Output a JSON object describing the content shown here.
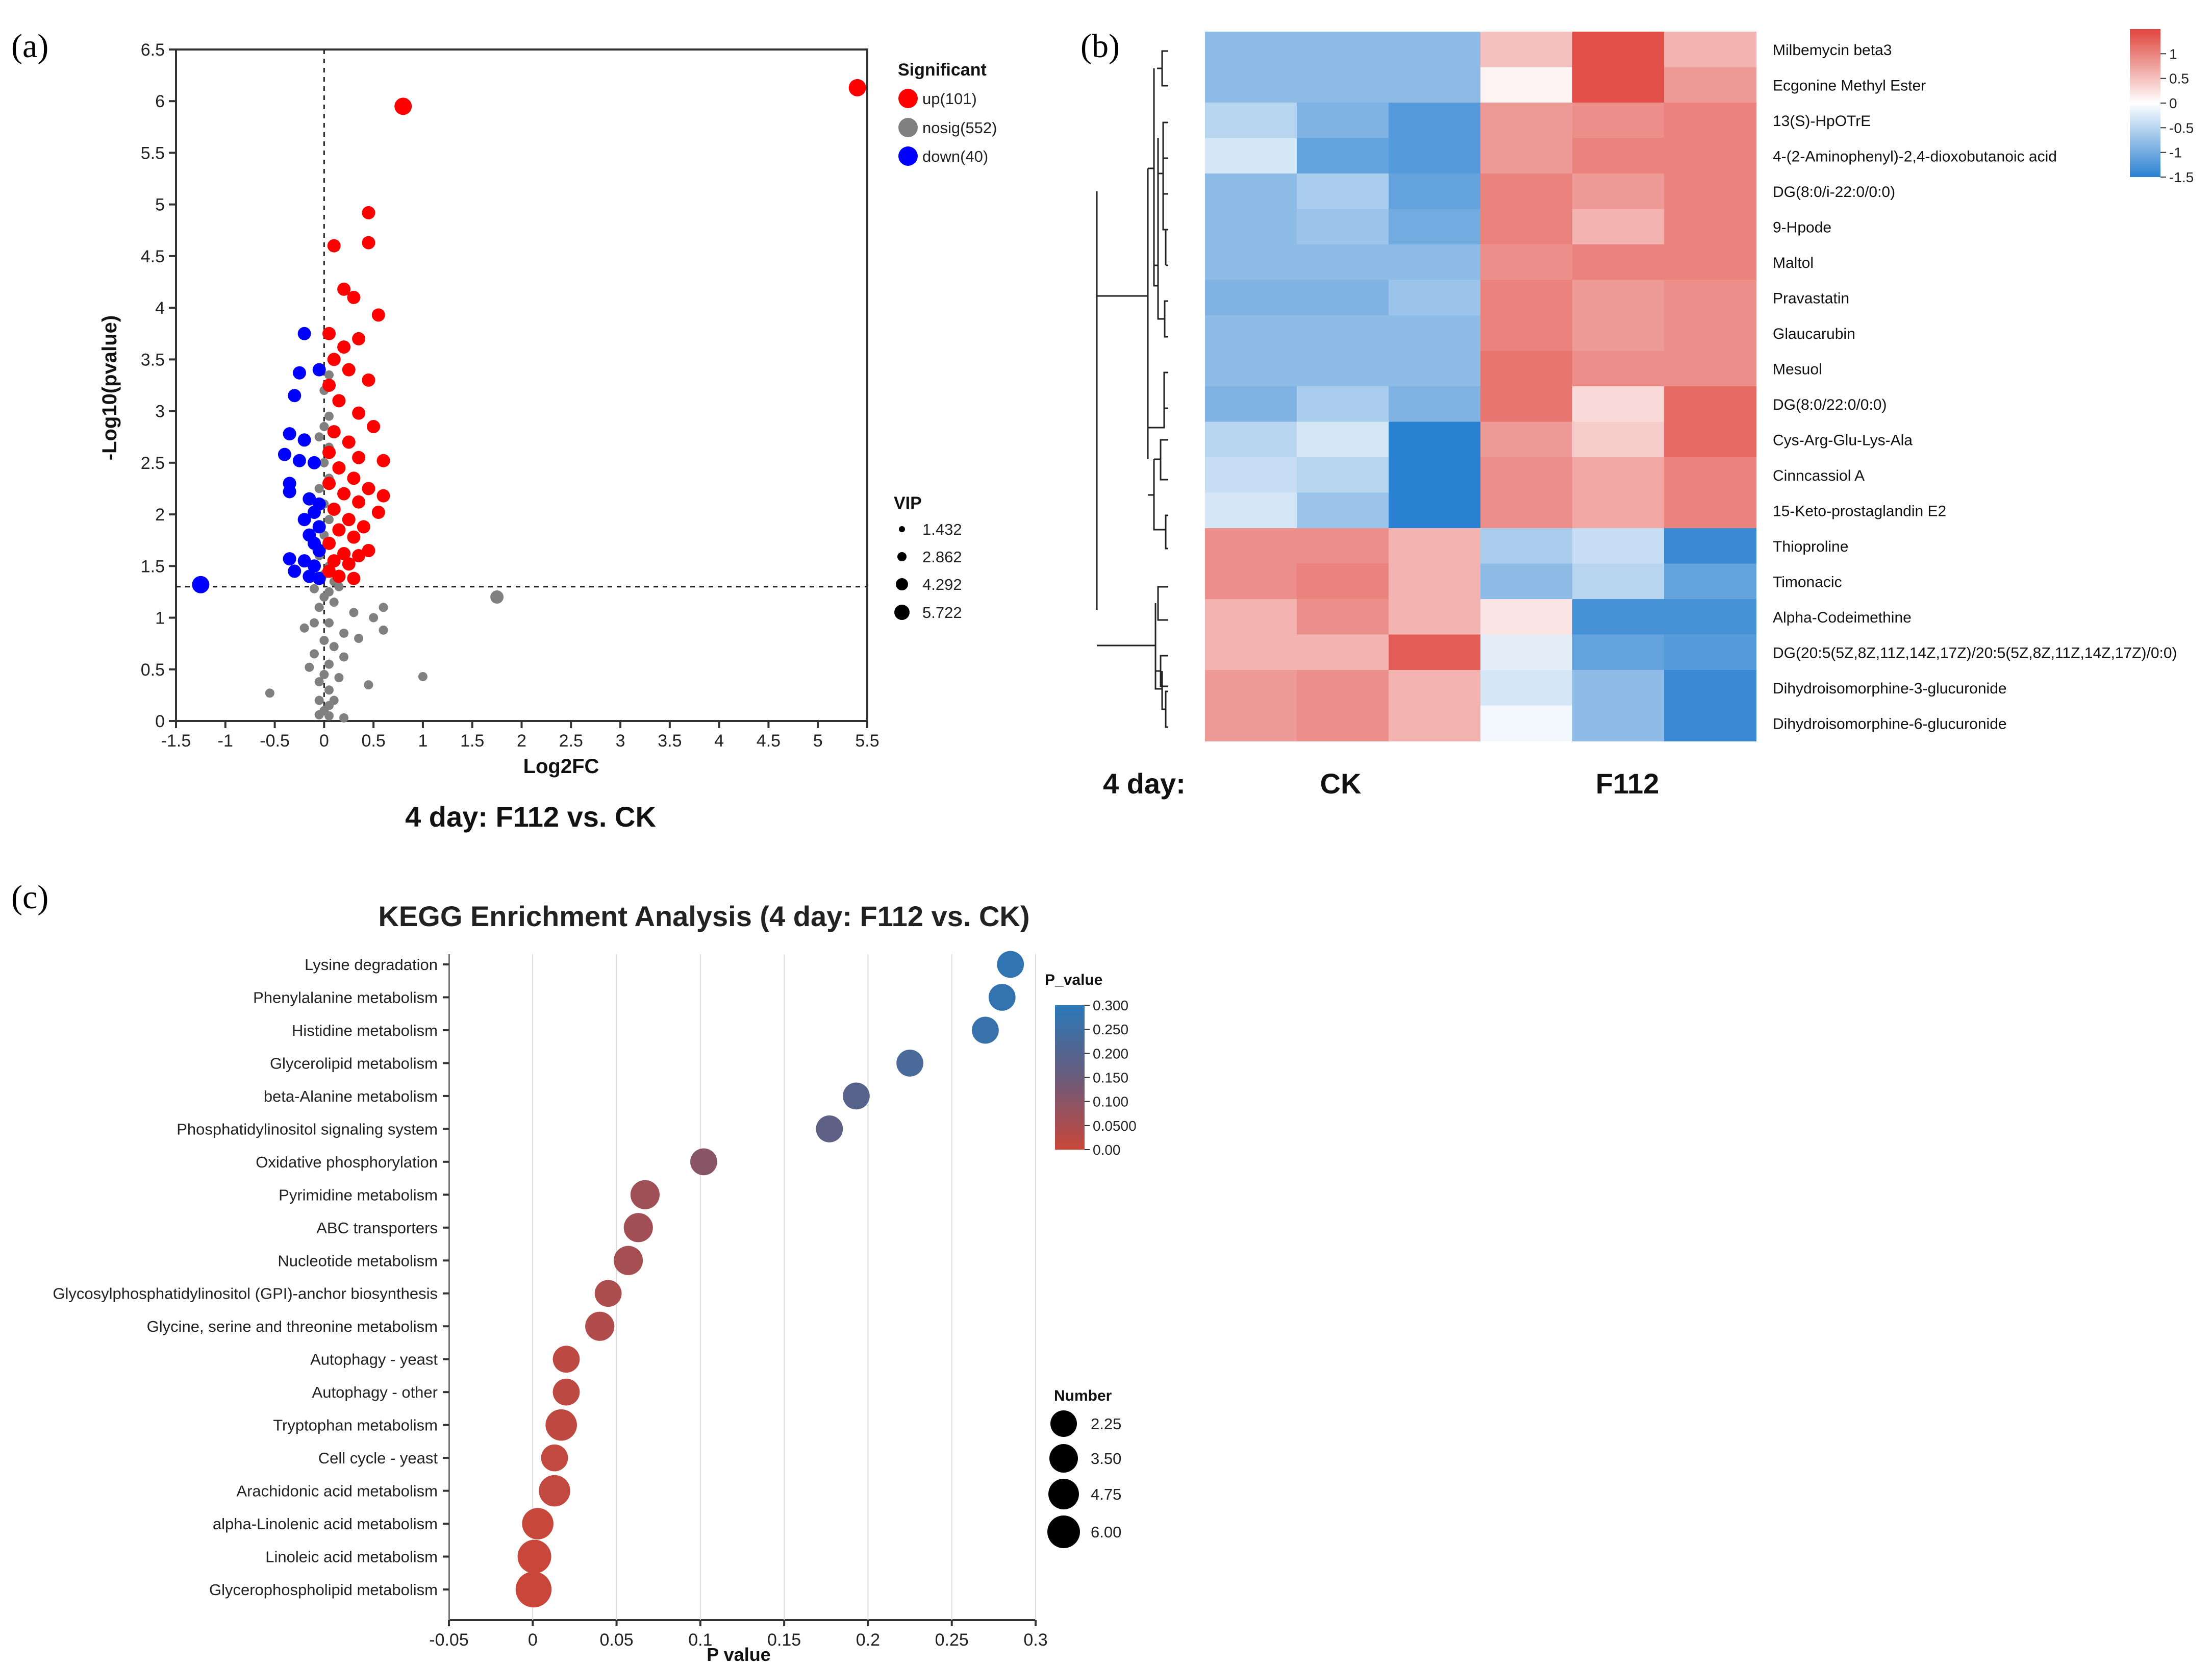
{
  "panels": {
    "a": "(a)",
    "b": "(b)",
    "c": "(c)"
  },
  "colors": {
    "up": "#ff0000",
    "nosig": "#808080",
    "down": "#0000ff",
    "heat_high": "#e0443c",
    "heat_mid": "#ffffff",
    "heat_low": "#2b81d1"
  },
  "chart_data": [
    {
      "type": "scatter",
      "title": "4 day: F112 vs. CK",
      "xlabel": "Log2FC",
      "ylabel": "-Log10(pvalue)",
      "xlim": [
        -1.5,
        5.5
      ],
      "ylim": [
        0,
        6.5
      ],
      "xticks": [
        "-1.5",
        "-1",
        "-0.5",
        "0",
        "0.5",
        "1",
        "1.5",
        "2",
        "2.5",
        "3",
        "3.5",
        "4",
        "4.5",
        "5",
        "5.5"
      ],
      "yticks": [
        "0",
        "0.5",
        "1",
        "1.5",
        "2",
        "2.5",
        "3",
        "3.5",
        "4",
        "4.5",
        "5",
        "5.5",
        "6",
        "6.5"
      ],
      "threshold_y": 1.3,
      "threshold_x": 0,
      "legend_title": "Significant",
      "legend": [
        {
          "key": "up",
          "label": "up(101)"
        },
        {
          "key": "nosig",
          "label": "nosig(552)"
        },
        {
          "key": "down",
          "label": "down(40)"
        }
      ],
      "size_legend_title": "VIP",
      "size_legend": [
        "1.432",
        "2.862",
        "4.292",
        "5.722"
      ],
      "points": {
        "up": [
          [
            5.4,
            6.13
          ],
          [
            0.8,
            5.95
          ],
          [
            0.45,
            4.92
          ],
          [
            0.45,
            4.63
          ],
          [
            0.1,
            4.6
          ],
          [
            0.2,
            4.18
          ],
          [
            0.3,
            4.1
          ],
          [
            0.55,
            3.93
          ],
          [
            0.05,
            3.75
          ],
          [
            0.35,
            3.7
          ],
          [
            0.2,
            3.62
          ],
          [
            0.1,
            3.5
          ],
          [
            0.25,
            3.4
          ],
          [
            0.45,
            3.3
          ],
          [
            0.05,
            3.25
          ],
          [
            0.15,
            3.1
          ],
          [
            0.35,
            2.98
          ],
          [
            0.5,
            2.85
          ],
          [
            0.1,
            2.8
          ],
          [
            0.25,
            2.7
          ],
          [
            0.05,
            2.6
          ],
          [
            0.35,
            2.55
          ],
          [
            0.6,
            2.52
          ],
          [
            0.15,
            2.45
          ],
          [
            0.3,
            2.35
          ],
          [
            0.05,
            2.3
          ],
          [
            0.45,
            2.25
          ],
          [
            0.2,
            2.2
          ],
          [
            0.6,
            2.18
          ],
          [
            0.35,
            2.12
          ],
          [
            0.1,
            2.05
          ],
          [
            0.55,
            2.02
          ],
          [
            0.25,
            1.95
          ],
          [
            0.4,
            1.88
          ],
          [
            0.15,
            1.85
          ],
          [
            0.3,
            1.78
          ],
          [
            0.05,
            1.72
          ],
          [
            0.45,
            1.65
          ],
          [
            0.2,
            1.62
          ],
          [
            0.35,
            1.6
          ],
          [
            0.1,
            1.55
          ],
          [
            0.25,
            1.52
          ],
          [
            0.05,
            1.45
          ],
          [
            0.15,
            1.4
          ],
          [
            0.3,
            1.38
          ]
        ],
        "down": [
          [
            -1.25,
            1.32
          ],
          [
            -0.2,
            3.75
          ],
          [
            -0.05,
            3.4
          ],
          [
            -0.25,
            3.37
          ],
          [
            -0.3,
            3.15
          ],
          [
            -0.35,
            2.78
          ],
          [
            -0.2,
            2.72
          ],
          [
            -0.4,
            2.58
          ],
          [
            -0.25,
            2.52
          ],
          [
            -0.1,
            2.5
          ],
          [
            -0.35,
            2.3
          ],
          [
            -0.35,
            2.22
          ],
          [
            -0.15,
            2.15
          ],
          [
            -0.05,
            2.1
          ],
          [
            -0.1,
            2.02
          ],
          [
            -0.2,
            1.95
          ],
          [
            -0.05,
            1.88
          ],
          [
            -0.15,
            1.8
          ],
          [
            -0.1,
            1.72
          ],
          [
            -0.05,
            1.65
          ],
          [
            -0.35,
            1.57
          ],
          [
            -0.2,
            1.55
          ],
          [
            -0.1,
            1.5
          ],
          [
            -0.3,
            1.45
          ],
          [
            -0.15,
            1.4
          ],
          [
            -0.05,
            1.38
          ]
        ],
        "nosig": [
          [
            1.75,
            1.2
          ],
          [
            0.05,
            3.35
          ],
          [
            0,
            3.2
          ],
          [
            0.05,
            2.95
          ],
          [
            0,
            2.85
          ],
          [
            -0.05,
            2.75
          ],
          [
            0.05,
            2.65
          ],
          [
            0,
            2.5
          ],
          [
            0.05,
            2.35
          ],
          [
            -0.05,
            2.25
          ],
          [
            0,
            2.1
          ],
          [
            0.05,
            1.95
          ],
          [
            0,
            1.8
          ],
          [
            0.05,
            1.7
          ],
          [
            -0.05,
            1.6
          ],
          [
            0.05,
            1.5
          ],
          [
            0,
            1.42
          ],
          [
            0.1,
            1.35
          ],
          [
            0.15,
            1.3
          ],
          [
            -0.1,
            1.28
          ],
          [
            0.05,
            1.25
          ],
          [
            0,
            1.2
          ],
          [
            0.1,
            1.15
          ],
          [
            -0.05,
            1.1
          ],
          [
            0.6,
            1.1
          ],
          [
            0.3,
            1.05
          ],
          [
            0.5,
            1.0
          ],
          [
            0.6,
            0.88
          ],
          [
            0.05,
            0.95
          ],
          [
            -0.1,
            0.95
          ],
          [
            -0.2,
            0.9
          ],
          [
            0.2,
            0.85
          ],
          [
            0.35,
            0.8
          ],
          [
            0,
            0.78
          ],
          [
            0.1,
            0.72
          ],
          [
            -0.1,
            0.65
          ],
          [
            0.2,
            0.62
          ],
          [
            0.05,
            0.55
          ],
          [
            -0.15,
            0.52
          ],
          [
            0,
            0.45
          ],
          [
            0.15,
            0.42
          ],
          [
            -0.05,
            0.38
          ],
          [
            0.45,
            0.35
          ],
          [
            1.0,
            0.43
          ],
          [
            0.05,
            0.3
          ],
          [
            -0.55,
            0.27
          ],
          [
            -0.05,
            0.2
          ],
          [
            0.05,
            0.15
          ],
          [
            0,
            0.1
          ],
          [
            0.05,
            0.05
          ],
          [
            0.2,
            0.03
          ],
          [
            -0.05,
            0.06
          ],
          [
            0.1,
            0.2
          ]
        ]
      }
    },
    {
      "type": "heatmap",
      "group_prefix": "4 day:",
      "groups": [
        "CK",
        "F112"
      ],
      "colorbar_ticks": [
        "1",
        "0.5",
        "0",
        "-0.5",
        "-1",
        "-1.5"
      ],
      "colorbar_range": [
        -1.5,
        1.5
      ],
      "rows": [
        "Milbemycin beta3",
        "Ecgonine Methyl Ester",
        "13(S)-HpOTrE",
        "4-(2-Aminophenyl)-2,4-dioxobutanoic acid",
        "DG(8:0/i-22:0/0:0)",
        "9-Hpode",
        "Maltol",
        "Pravastatin",
        "Glaucarubin",
        "Mesuol",
        "DG(8:0/22:0/0:0)",
        "Cys-Arg-Glu-Lys-Ala",
        "Cinncassiol A",
        "15-Keto-prostaglandin E2",
        "Thioproline",
        "Timonacic",
        "Alpha-Codeimethine",
        "DG(20:5(5Z,8Z,11Z,14Z,17Z)/20:5(5Z,8Z,11Z,14Z,17Z)/0:0)",
        "Dihydroisomorphine-3-glucuronide",
        "Dihydroisomorphine-6-glucuronide"
      ],
      "values": [
        [
          -0.8,
          -0.8,
          -0.8,
          0.5,
          1.4,
          0.6
        ],
        [
          -0.8,
          -0.8,
          -0.8,
          0.1,
          1.4,
          0.8
        ],
        [
          -0.5,
          -0.9,
          -1.2,
          0.8,
          0.9,
          1.0
        ],
        [
          -0.3,
          -1.1,
          -1.2,
          0.8,
          1.0,
          1.0
        ],
        [
          -0.8,
          -0.6,
          -1.1,
          1.0,
          0.8,
          1.0
        ],
        [
          -0.8,
          -0.7,
          -1.0,
          1.0,
          0.6,
          1.0
        ],
        [
          -0.8,
          -0.8,
          -0.8,
          0.9,
          1.0,
          1.0
        ],
        [
          -0.9,
          -0.9,
          -0.7,
          1.0,
          0.8,
          0.9
        ],
        [
          -0.8,
          -0.8,
          -0.8,
          1.0,
          0.8,
          0.9
        ],
        [
          -0.8,
          -0.8,
          -0.8,
          1.1,
          0.9,
          0.9
        ],
        [
          -0.9,
          -0.6,
          -0.9,
          1.1,
          0.3,
          1.2
        ],
        [
          -0.5,
          -0.3,
          -1.5,
          0.8,
          0.4,
          1.2
        ],
        [
          -0.4,
          -0.5,
          -1.6,
          0.9,
          0.7,
          1.0
        ],
        [
          -0.3,
          -0.7,
          -1.6,
          0.9,
          0.7,
          1.0
        ],
        [
          0.9,
          0.9,
          0.6,
          -0.6,
          -0.4,
          -1.4
        ],
        [
          0.9,
          1.0,
          0.6,
          -0.8,
          -0.5,
          -1.1
        ],
        [
          0.6,
          0.9,
          0.6,
          0.2,
          -1.3,
          -1.3
        ],
        [
          0.6,
          0.6,
          1.3,
          -0.2,
          -1.1,
          -1.2
        ],
        [
          0.8,
          0.9,
          0.6,
          -0.3,
          -0.8,
          -1.4
        ],
        [
          0.8,
          0.9,
          0.6,
          -0.1,
          -0.8,
          -1.4
        ]
      ]
    },
    {
      "type": "scatter",
      "title": "KEGG Enrichment Analysis (4 day: F112 vs. CK)",
      "xlabel": "P value",
      "xlim": [
        -0.05,
        0.3
      ],
      "xticks": [
        "-0.05",
        "0",
        "0.05",
        "0.1",
        "0.15",
        "0.2",
        "0.25",
        "0.3"
      ],
      "color_legend_title": "P_value",
      "color_ticks": [
        "0.300",
        "0.250",
        "0.200",
        "0.150",
        "0.100",
        "0.0500",
        "0.00"
      ],
      "size_legend_title": "Number",
      "size_legend": [
        "2.25",
        "3.50",
        "4.75",
        "6.00"
      ],
      "pathways": [
        {
          "name": "Lysine degradation",
          "p": 0.285,
          "n": 2
        },
        {
          "name": "Phenylalanine metabolism",
          "p": 0.28,
          "n": 2
        },
        {
          "name": "Histidine metabolism",
          "p": 0.27,
          "n": 2
        },
        {
          "name": "Glycerolipid metabolism",
          "p": 0.225,
          "n": 2
        },
        {
          "name": "beta-Alanine metabolism",
          "p": 0.193,
          "n": 2
        },
        {
          "name": "Phosphatidylinositol signaling system",
          "p": 0.177,
          "n": 2
        },
        {
          "name": "Oxidative phosphorylation",
          "p": 0.102,
          "n": 2
        },
        {
          "name": "Pyrimidine metabolism",
          "p": 0.067,
          "n": 3
        },
        {
          "name": "ABC transporters",
          "p": 0.063,
          "n": 3
        },
        {
          "name": "Nucleotide metabolism",
          "p": 0.057,
          "n": 3
        },
        {
          "name": "Glycosylphosphatidylinositol (GPI)-anchor biosynthesis",
          "p": 0.045,
          "n": 2
        },
        {
          "name": "Glycine, serine and threonine metabolism",
          "p": 0.04,
          "n": 3
        },
        {
          "name": "Autophagy - yeast",
          "p": 0.02,
          "n": 2
        },
        {
          "name": "Autophagy - other",
          "p": 0.02,
          "n": 2
        },
        {
          "name": "Tryptophan metabolism",
          "p": 0.017,
          "n": 4
        },
        {
          "name": "Cell cycle - yeast",
          "p": 0.013,
          "n": 2
        },
        {
          "name": "Arachidonic acid metabolism",
          "p": 0.013,
          "n": 4
        },
        {
          "name": "alpha-Linolenic acid metabolism",
          "p": 0.003,
          "n": 4
        },
        {
          "name": "Linoleic acid metabolism",
          "p": 0.001,
          "n": 5
        },
        {
          "name": "Glycerophospholipid metabolism",
          "p": 0.0005,
          "n": 6
        }
      ]
    }
  ]
}
